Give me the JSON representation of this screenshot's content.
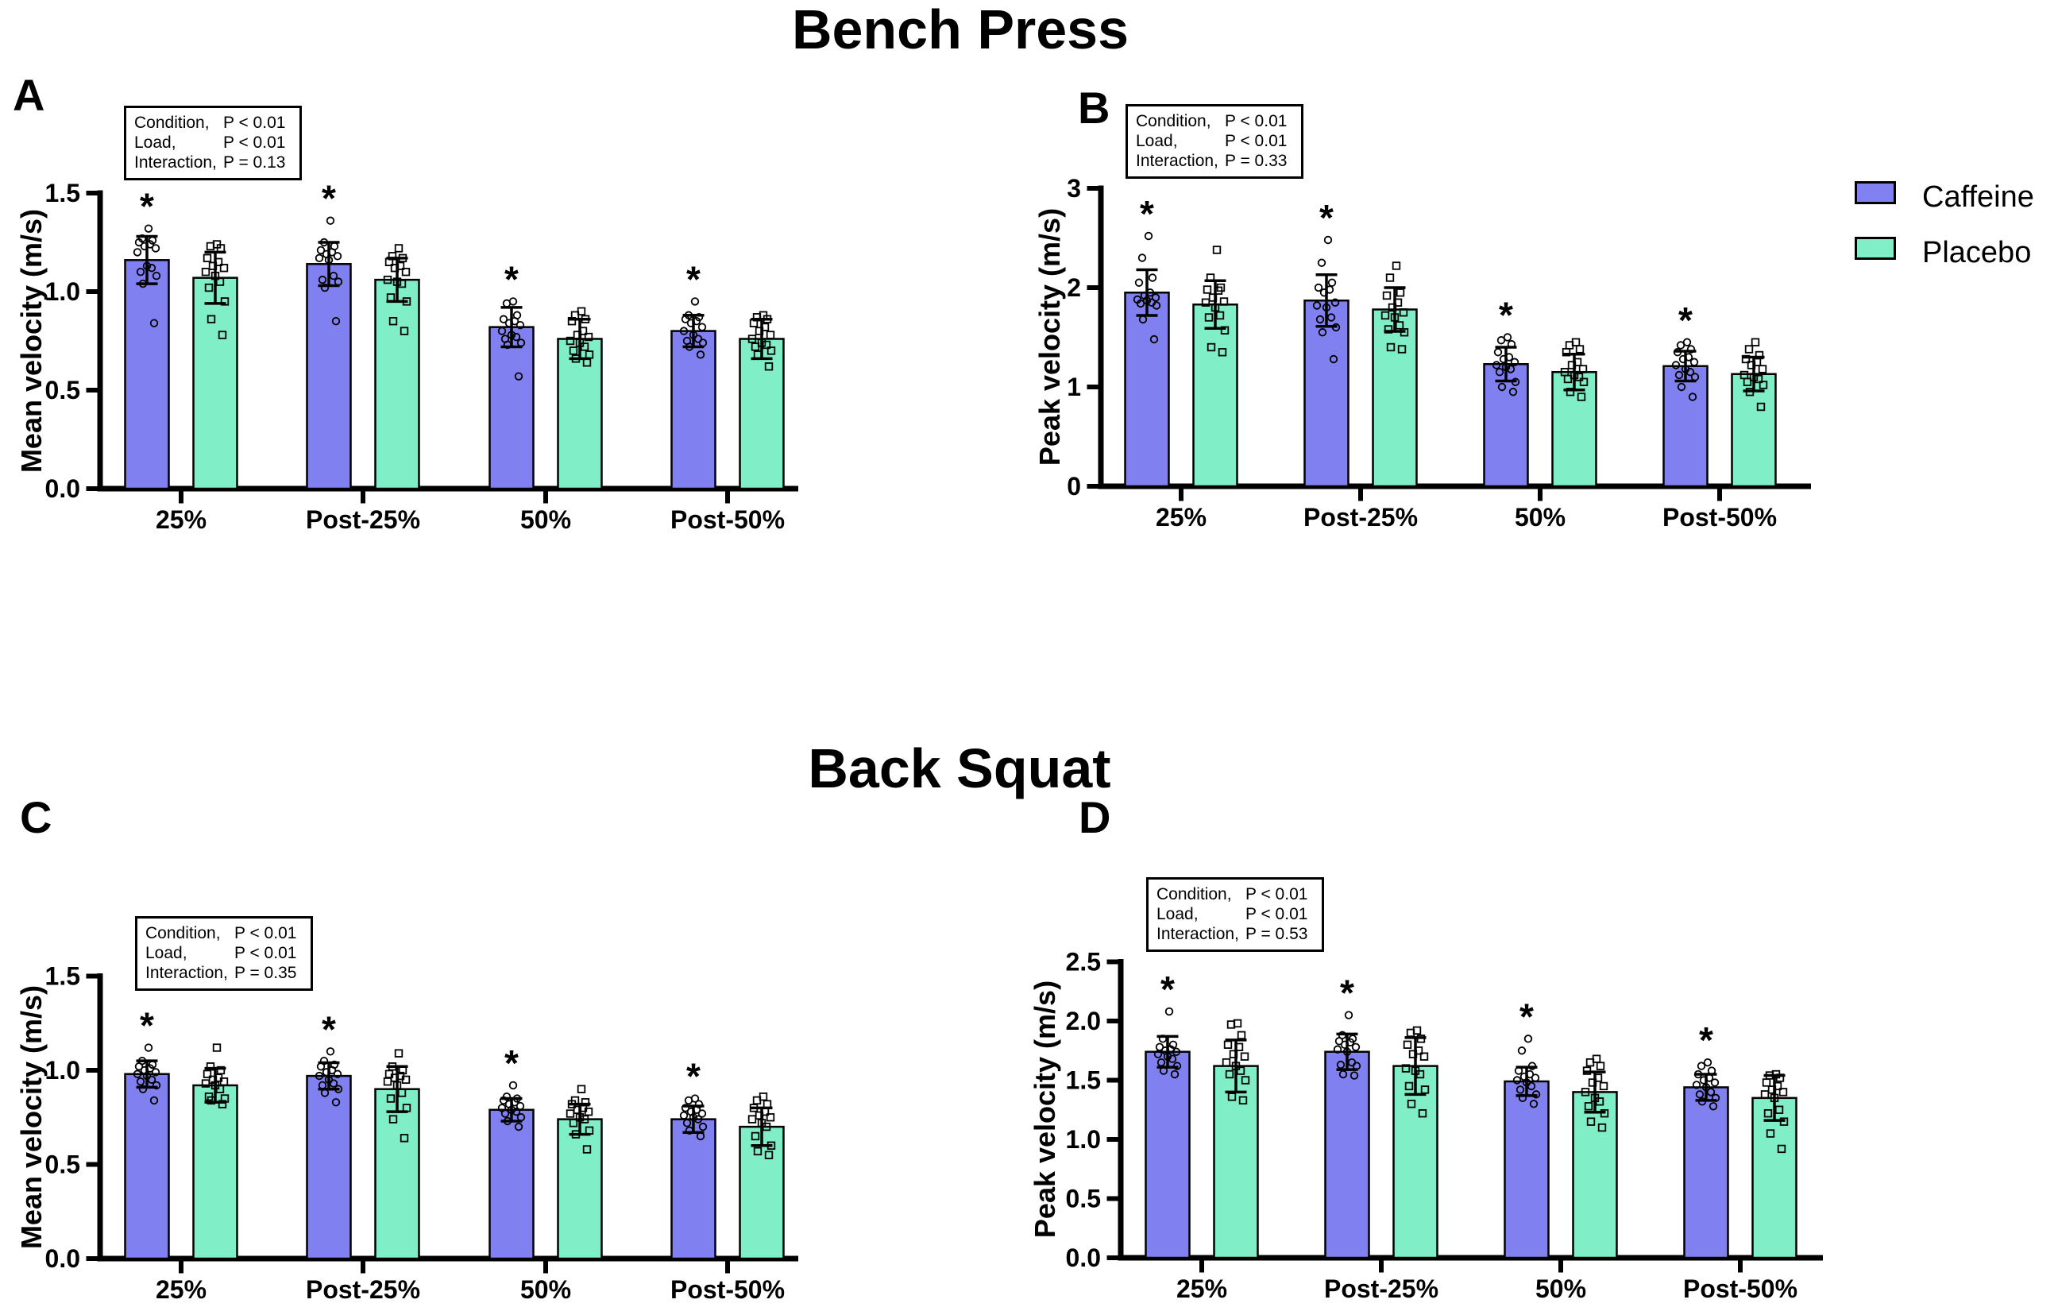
{
  "figure": {
    "background": "#FFFFFF",
    "titles": [
      {
        "id": "bench-press",
        "text": "Bench Press"
      },
      {
        "id": "back-squat",
        "text": "Back Squat"
      }
    ]
  },
  "legend": {
    "items": [
      {
        "label": "Caffeine",
        "color": "#8080F0",
        "marker": "circle"
      },
      {
        "label": "Placebo",
        "color": "#80EFC8",
        "marker": "square"
      }
    ]
  },
  "chart_data": [
    {
      "panel": "A",
      "exercise": "Bench Press",
      "type": "bar",
      "ylabel": "Mean velocity (m/s)",
      "ylim": [
        0,
        1.5
      ],
      "yticks": [
        "0.0",
        "0.5",
        "1.0",
        "1.5"
      ],
      "categories": [
        "25%",
        "Post-25%",
        "50%",
        "Post-50%"
      ],
      "stats": [
        {
          "label": "Condition,",
          "value": "P < 0.01"
        },
        {
          "label": "Load,",
          "value": "P < 0.01"
        },
        {
          "label": "Interaction,",
          "value": "P = 0.13"
        }
      ],
      "series": [
        {
          "name": "Caffeine",
          "means": [
            1.16,
            1.14,
            0.82,
            0.8
          ],
          "sd": [
            0.12,
            0.11,
            0.1,
            0.08
          ],
          "significant": [
            true,
            true,
            true,
            true
          ],
          "points": [
            [
              1.32,
              1.27,
              1.26,
              1.25,
              1.24,
              1.23,
              1.22,
              1.2,
              1.13,
              1.12,
              1.1,
              1.08,
              1.04,
              0.84
            ],
            [
              1.36,
              1.25,
              1.23,
              1.21,
              1.2,
              1.19,
              1.18,
              1.17,
              1.16,
              1.08,
              1.06,
              1.05,
              1.02,
              0.85
            ],
            [
              0.95,
              0.94,
              0.88,
              0.86,
              0.85,
              0.84,
              0.83,
              0.8,
              0.78,
              0.77,
              0.76,
              0.74,
              0.73,
              0.57
            ],
            [
              0.95,
              0.88,
              0.87,
              0.86,
              0.85,
              0.84,
              0.82,
              0.8,
              0.78,
              0.76,
              0.75,
              0.74,
              0.72,
              0.68
            ]
          ]
        },
        {
          "name": "Placebo",
          "means": [
            1.07,
            1.06,
            0.76,
            0.76
          ],
          "sd": [
            0.13,
            0.11,
            0.1,
            0.1
          ],
          "significant": [
            false,
            false,
            false,
            false
          ],
          "points": [
            [
              1.24,
              1.23,
              1.22,
              1.17,
              1.15,
              1.13,
              1.12,
              1.1,
              1.08,
              1.05,
              1.02,
              0.95,
              0.86,
              0.78
            ],
            [
              1.22,
              1.18,
              1.17,
              1.15,
              1.13,
              1.12,
              1.1,
              1.06,
              1.05,
              1.04,
              0.97,
              0.95,
              0.85,
              0.8
            ],
            [
              0.9,
              0.88,
              0.86,
              0.85,
              0.8,
              0.78,
              0.77,
              0.75,
              0.74,
              0.72,
              0.7,
              0.68,
              0.66,
              0.64
            ],
            [
              0.88,
              0.87,
              0.86,
              0.84,
              0.82,
              0.8,
              0.78,
              0.76,
              0.74,
              0.73,
              0.72,
              0.7,
              0.68,
              0.62
            ]
          ]
        }
      ]
    },
    {
      "panel": "B",
      "exercise": "Bench Press",
      "type": "bar",
      "ylabel": "Peak  velocity (m/s)",
      "ylim": [
        0,
        3
      ],
      "yticks": [
        "0",
        "1",
        "2",
        "3"
      ],
      "categories": [
        "25%",
        "Post-25%",
        "50%",
        "Post-50%"
      ],
      "stats": [
        {
          "label": "Condition,",
          "value": "P < 0.01"
        },
        {
          "label": "Load,",
          "value": "P < 0.01"
        },
        {
          "label": "Interaction,",
          "value": "P = 0.33"
        }
      ],
      "series": [
        {
          "name": "Caffeine",
          "means": [
            1.95,
            1.87,
            1.23,
            1.21
          ],
          "sd": [
            0.23,
            0.26,
            0.17,
            0.15
          ],
          "significant": [
            true,
            true,
            true,
            true
          ],
          "points": [
            [
              2.52,
              2.3,
              2.1,
              2.05,
              1.95,
              1.92,
              1.9,
              1.88,
              1.87,
              1.85,
              1.84,
              1.82,
              1.68,
              1.48
            ],
            [
              2.48,
              2.25,
              2.05,
              2.0,
              1.98,
              1.95,
              1.85,
              1.82,
              1.8,
              1.7,
              1.68,
              1.6,
              1.55,
              1.28
            ],
            [
              1.5,
              1.47,
              1.43,
              1.35,
              1.3,
              1.28,
              1.25,
              1.22,
              1.2,
              1.18,
              1.15,
              1.05,
              1.0,
              0.95
            ],
            [
              1.45,
              1.42,
              1.38,
              1.35,
              1.3,
              1.28,
              1.25,
              1.22,
              1.18,
              1.15,
              1.12,
              1.1,
              1.0,
              0.9
            ]
          ]
        },
        {
          "name": "Placebo",
          "means": [
            1.83,
            1.78,
            1.15,
            1.13
          ],
          "sd": [
            0.24,
            0.22,
            0.18,
            0.17
          ],
          "significant": [
            false,
            false,
            false,
            false
          ],
          "points": [
            [
              2.38,
              2.1,
              2.0,
              1.98,
              1.97,
              1.9,
              1.86,
              1.85,
              1.8,
              1.72,
              1.7,
              1.57,
              1.4,
              1.35
            ],
            [
              2.22,
              2.1,
              1.95,
              1.92,
              1.85,
              1.8,
              1.75,
              1.72,
              1.7,
              1.62,
              1.58,
              1.55,
              1.4,
              1.38
            ],
            [
              1.45,
              1.42,
              1.38,
              1.35,
              1.25,
              1.22,
              1.18,
              1.15,
              1.12,
              1.1,
              1.08,
              1.05,
              0.95,
              0.9
            ],
            [
              1.45,
              1.38,
              1.32,
              1.28,
              1.25,
              1.22,
              1.18,
              1.12,
              1.1,
              1.08,
              1.05,
              1.02,
              0.95,
              0.8
            ]
          ]
        }
      ]
    },
    {
      "panel": "C",
      "exercise": "Back Squat",
      "type": "bar",
      "ylabel": "Mean velocity (m/s)",
      "ylim": [
        0,
        1.5
      ],
      "yticks": [
        "0.0",
        "0.5",
        "1.0",
        "1.5"
      ],
      "categories": [
        "25%",
        "Post-25%",
        "50%",
        "Post-50%"
      ],
      "stats": [
        {
          "label": "Condition,",
          "value": "P < 0.01"
        },
        {
          "label": "Load,",
          "value": "P < 0.01"
        },
        {
          "label": "Interaction,",
          "value": "P = 0.35"
        }
      ],
      "series": [
        {
          "name": "Caffeine",
          "means": [
            0.98,
            0.97,
            0.79,
            0.74
          ],
          "sd": [
            0.07,
            0.07,
            0.06,
            0.07
          ],
          "significant": [
            true,
            true,
            true,
            true
          ],
          "points": [
            [
              1.12,
              1.05,
              1.03,
              1.02,
              1.01,
              1.0,
              0.99,
              0.98,
              0.97,
              0.95,
              0.94,
              0.92,
              0.9,
              0.84
            ],
            [
              1.1,
              1.05,
              1.03,
              1.02,
              1.0,
              0.99,
              0.98,
              0.97,
              0.95,
              0.93,
              0.92,
              0.9,
              0.88,
              0.83
            ],
            [
              0.92,
              0.86,
              0.85,
              0.84,
              0.83,
              0.82,
              0.81,
              0.8,
              0.79,
              0.78,
              0.77,
              0.75,
              0.73,
              0.7
            ],
            [
              0.85,
              0.84,
              0.82,
              0.8,
              0.79,
              0.78,
              0.77,
              0.76,
              0.75,
              0.74,
              0.72,
              0.7,
              0.68,
              0.65
            ]
          ]
        },
        {
          "name": "Placebo",
          "means": [
            0.92,
            0.9,
            0.74,
            0.7
          ],
          "sd": [
            0.09,
            0.12,
            0.08,
            0.1
          ],
          "significant": [
            false,
            false,
            false,
            false
          ],
          "points": [
            [
              1.12,
              1.02,
              1.0,
              0.98,
              0.96,
              0.95,
              0.94,
              0.93,
              0.92,
              0.9,
              0.86,
              0.85,
              0.84,
              0.82
            ],
            [
              1.09,
              1.02,
              1.0,
              0.98,
              0.97,
              0.96,
              0.95,
              0.94,
              0.92,
              0.88,
              0.85,
              0.8,
              0.74,
              0.64
            ],
            [
              0.9,
              0.84,
              0.83,
              0.82,
              0.8,
              0.79,
              0.78,
              0.77,
              0.75,
              0.74,
              0.72,
              0.68,
              0.66,
              0.58
            ],
            [
              0.86,
              0.84,
              0.82,
              0.8,
              0.78,
              0.76,
              0.75,
              0.74,
              0.72,
              0.7,
              0.65,
              0.6,
              0.57,
              0.55
            ]
          ]
        }
      ]
    },
    {
      "panel": "D",
      "exercise": "Back Squat",
      "type": "bar",
      "ylabel": "Peak  velocity (m/s)",
      "ylim": [
        0,
        2.5
      ],
      "yticks": [
        "0.0",
        "0.5",
        "1.0",
        "1.5",
        "2.0",
        "2.5"
      ],
      "categories": [
        "25%",
        "Post-25%",
        "50%",
        "Post-50%"
      ],
      "stats": [
        {
          "label": "Condition,",
          "value": "P < 0.01"
        },
        {
          "label": "Load,",
          "value": "P < 0.01"
        },
        {
          "label": "Interaction,",
          "value": "P = 0.53"
        }
      ],
      "series": [
        {
          "name": "Caffeine",
          "means": [
            1.74,
            1.74,
            1.49,
            1.44
          ],
          "sd": [
            0.13,
            0.15,
            0.12,
            0.11
          ],
          "significant": [
            true,
            true,
            true,
            true
          ],
          "points": [
            [
              2.08,
              1.85,
              1.8,
              1.78,
              1.76,
              1.75,
              1.74,
              1.72,
              1.7,
              1.68,
              1.65,
              1.62,
              1.58,
              1.55
            ],
            [
              2.05,
              1.88,
              1.85,
              1.83,
              1.82,
              1.8,
              1.78,
              1.76,
              1.74,
              1.65,
              1.63,
              1.62,
              1.55,
              1.54
            ],
            [
              1.85,
              1.75,
              1.62,
              1.58,
              1.55,
              1.53,
              1.52,
              1.5,
              1.48,
              1.45,
              1.42,
              1.38,
              1.35,
              1.3
            ],
            [
              1.65,
              1.62,
              1.58,
              1.55,
              1.52,
              1.5,
              1.48,
              1.46,
              1.44,
              1.4,
              1.38,
              1.35,
              1.32,
              1.28
            ]
          ]
        },
        {
          "name": "Placebo",
          "means": [
            1.62,
            1.62,
            1.4,
            1.35
          ],
          "sd": [
            0.22,
            0.24,
            0.17,
            0.19
          ],
          "significant": [
            false,
            false,
            false,
            false
          ],
          "points": [
            [
              1.98,
              1.97,
              1.88,
              1.8,
              1.78,
              1.72,
              1.7,
              1.65,
              1.62,
              1.58,
              1.55,
              1.5,
              1.36,
              1.33
            ],
            [
              1.92,
              1.9,
              1.85,
              1.8,
              1.75,
              1.72,
              1.7,
              1.6,
              1.58,
              1.55,
              1.45,
              1.42,
              1.3,
              1.22
            ],
            [
              1.68,
              1.65,
              1.62,
              1.58,
              1.52,
              1.48,
              1.45,
              1.4,
              1.35,
              1.32,
              1.28,
              1.22,
              1.15,
              1.1
            ],
            [
              1.55,
              1.54,
              1.52,
              1.48,
              1.45,
              1.42,
              1.4,
              1.38,
              1.35,
              1.25,
              1.22,
              1.15,
              1.05,
              0.92
            ]
          ]
        }
      ]
    }
  ]
}
